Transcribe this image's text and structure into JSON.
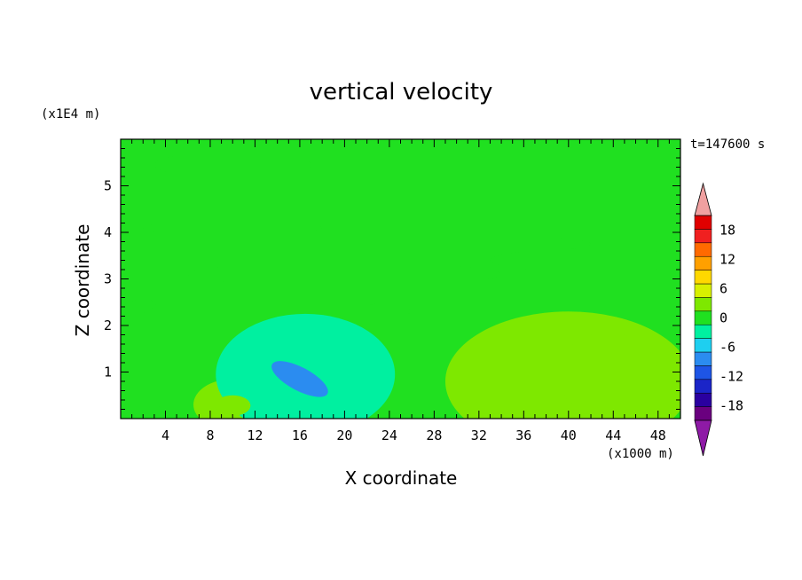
{
  "chart_data": {
    "type": "heatmap",
    "title": "vertical velocity",
    "xlabel": "X coordinate",
    "ylabel": "Z coordinate",
    "x_unit_label": "(x1000 m)",
    "y_unit_label": "(x1E4 m)",
    "time_label": "t=147600 s",
    "xlim": [
      0,
      50
    ],
    "ylim": [
      0,
      6
    ],
    "x_ticks": [
      4,
      8,
      12,
      16,
      20,
      24,
      28,
      32,
      36,
      40,
      44,
      48
    ],
    "y_ticks": [
      1,
      2,
      3,
      4,
      5
    ],
    "colorbar": {
      "levels": [
        -21,
        -18,
        -15,
        -12,
        -9,
        -6,
        -3,
        0,
        3,
        6,
        9,
        12,
        15,
        18,
        21
      ],
      "colors": [
        "#6a007f",
        "#2a00a0",
        "#1b25c8",
        "#1e55e6",
        "#2b8cf0",
        "#1ecff0",
        "#00f0a0",
        "#20e020",
        "#7ee800",
        "#d8f000",
        "#ffd800",
        "#ffa000",
        "#ff6a00",
        "#f02020",
        "#e00000"
      ],
      "low_extend_color": "#8e1aa6",
      "high_extend_color": "#f0a0a0",
      "tick_labels": [
        "18",
        "12",
        "6",
        "0",
        "-6",
        "-12",
        "-18"
      ],
      "tick_values": [
        18,
        12,
        6,
        0,
        -6,
        -12,
        -18
      ]
    },
    "background_value": 1,
    "features": [
      {
        "x": 43.5,
        "z": 0.95,
        "rx": 4.5,
        "rz": 0.9,
        "value": 5
      },
      {
        "x": 34.0,
        "z": 0.5,
        "rx": 3.2,
        "rz": 0.55,
        "value": 5
      },
      {
        "x": 40.0,
        "z": 0.8,
        "rx": 11.0,
        "rz": 1.5,
        "value": 3
      },
      {
        "x": 10.0,
        "z": 0.3,
        "rx": 3.5,
        "rz": 0.55,
        "value": 3
      },
      {
        "x": 10.0,
        "z": 0.28,
        "rx": 1.6,
        "rz": 0.22,
        "value": 5
      },
      {
        "x": 16.5,
        "z": 0.95,
        "rx": 8.0,
        "rz": 1.3,
        "value": -3
      },
      {
        "x": 16.0,
        "z": 0.85,
        "rx": 2.8,
        "rz": 0.25,
        "value": -9
      },
      {
        "x": 2.0,
        "z": 1.3,
        "rx": 2.4,
        "rz": 1.3,
        "value": 1
      },
      {
        "x": 10.0,
        "z": 5.45,
        "rx": 7.0,
        "rz": 0.28,
        "value": 1
      },
      {
        "x": 26.0,
        "z": 4.75,
        "rx": 20.0,
        "rz": 0.1,
        "value": 1
      },
      {
        "x": 30.0,
        "z": 3.75,
        "rx": 12.0,
        "rz": 0.2,
        "value": 1
      },
      {
        "x": 20.0,
        "z": 3.1,
        "rx": 14.0,
        "rz": 0.25,
        "value": 1
      },
      {
        "x": 42.0,
        "z": 3.4,
        "rx": 9.0,
        "rz": 0.25,
        "value": 1
      },
      {
        "x": 36.0,
        "z": 2.4,
        "rx": 14.0,
        "rz": 0.22,
        "value": 1
      },
      {
        "x": 14.0,
        "z": 2.3,
        "rx": 12.0,
        "rz": 0.2,
        "value": 1
      },
      {
        "x": 10.0,
        "z": 4.1,
        "rx": 8.0,
        "rz": 0.15,
        "value": 1
      }
    ]
  }
}
